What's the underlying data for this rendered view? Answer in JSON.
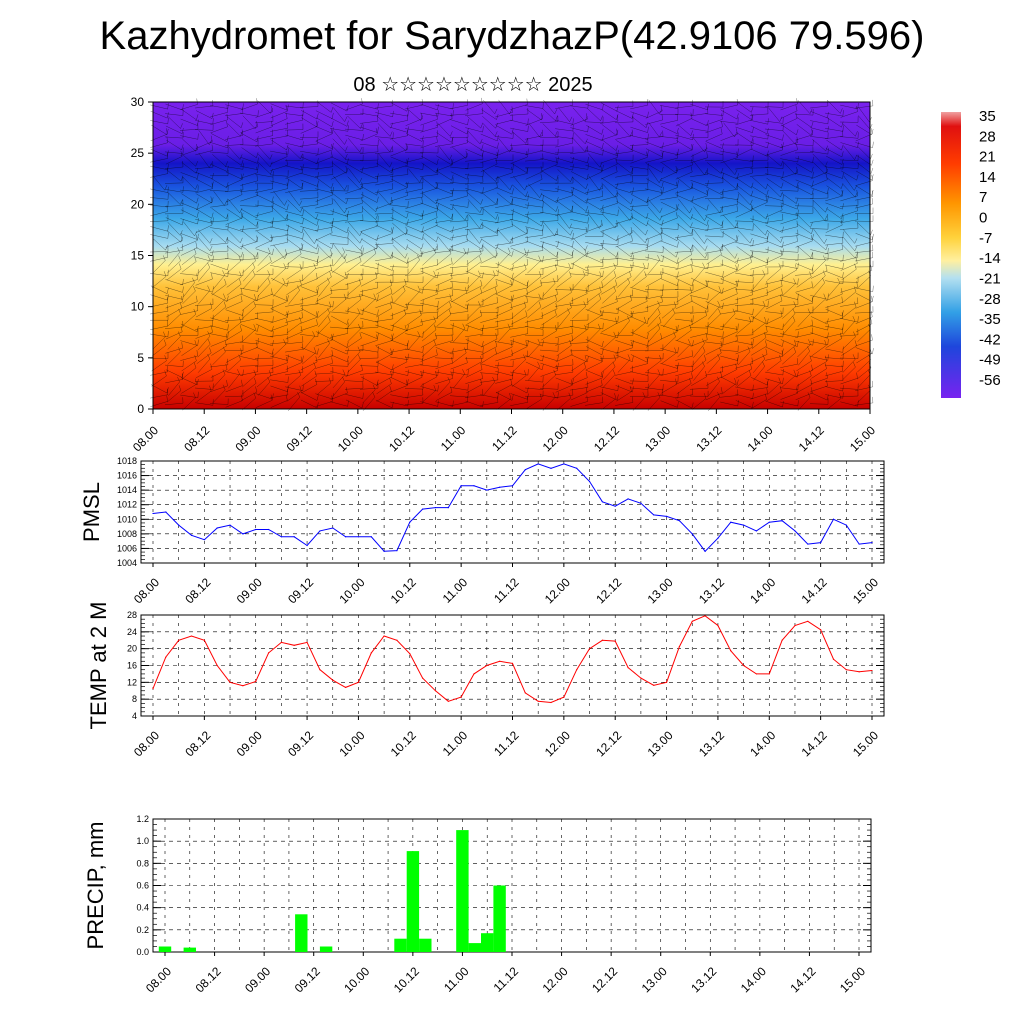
{
  "title": "Kazhydromet for SarydzhazP(42.9106 79.596)",
  "subtitle": "08 ☆☆☆☆☆☆☆☆☆ 2025",
  "time_labels": [
    "08.00",
    "08.12",
    "09.00",
    "09.12",
    "10.00",
    "10.12",
    "11.00",
    "11.12",
    "12.00",
    "12.12",
    "13.00",
    "13.12",
    "14.00",
    "14.12",
    "15.00"
  ],
  "chart_data": [
    {
      "type": "heatmap",
      "title": "",
      "x": [
        "08.00",
        "08.12",
        "09.00",
        "09.12",
        "10.00",
        "10.12",
        "11.00",
        "11.12",
        "12.00",
        "12.12",
        "13.00",
        "13.12",
        "14.00",
        "14.12",
        "15.00"
      ],
      "ylabel": "",
      "ylim": [
        0,
        30
      ],
      "yticks": [
        0,
        5,
        10,
        15,
        20,
        25,
        30
      ],
      "colorbar_labels": [
        "35",
        "28",
        "21",
        "14",
        "7",
        "0",
        "-7",
        "-14",
        "-21",
        "-28",
        "-35",
        "-42",
        "-49",
        "-56"
      ],
      "colorbar_range": [
        -60,
        38
      ],
      "description_of_field": "temperature by height: about 30 near the ground, about 0 near 14, about -35 near 20, below -56 near 25-30",
      "overlay": "wind barbs"
    },
    {
      "type": "line",
      "ylabel": "PMSL",
      "ylim": [
        1004,
        1018
      ],
      "yticks": [
        1004,
        1006,
        1008,
        1010,
        1012,
        1014,
        1016,
        1018
      ],
      "color": "#0000ff",
      "x": [
        "08.00",
        "08.03",
        "08.06",
        "08.09",
        "08.12",
        "08.15",
        "08.18",
        "08.21",
        "09.00",
        "09.03",
        "09.06",
        "09.09",
        "09.12",
        "09.15",
        "09.18",
        "09.21",
        "10.00",
        "10.03",
        "10.06",
        "10.09",
        "10.12",
        "10.15",
        "10.18",
        "10.21",
        "11.00",
        "11.03",
        "11.06",
        "11.09",
        "11.12",
        "11.15",
        "11.18",
        "11.21",
        "12.00",
        "12.03",
        "12.06",
        "12.09",
        "12.12",
        "12.15",
        "12.18",
        "12.21",
        "13.00",
        "13.03",
        "13.06",
        "13.09",
        "13.12",
        "13.15",
        "13.18",
        "13.21",
        "14.00",
        "14.03",
        "14.06",
        "14.09",
        "14.12",
        "14.15",
        "14.18",
        "14.21",
        "15.00"
      ],
      "values": [
        1010.8,
        1011.0,
        1009.2,
        1007.8,
        1007.2,
        1008.8,
        1009.2,
        1008.0,
        1008.6,
        1008.6,
        1007.6,
        1007.6,
        1006.4,
        1008.4,
        1008.8,
        1007.6,
        1007.6,
        1007.6,
        1005.6,
        1005.7,
        1009.6,
        1011.4,
        1011.6,
        1011.6,
        1014.6,
        1014.6,
        1014.0,
        1014.4,
        1014.6,
        1016.8,
        1017.6,
        1017.0,
        1017.6,
        1017.0,
        1015.2,
        1012.4,
        1011.8,
        1012.8,
        1012.2,
        1010.6,
        1010.4,
        1009.8,
        1008.0,
        1005.6,
        1007.4,
        1009.6,
        1009.2,
        1008.4,
        1009.6,
        1009.8,
        1008.4,
        1006.6,
        1006.8,
        1010.0,
        1009.2,
        1006.6,
        1006.8
      ]
    },
    {
      "type": "line",
      "ylabel": "TEMP at 2 M",
      "ylim": [
        4,
        28
      ],
      "yticks": [
        4,
        8,
        12,
        16,
        20,
        24,
        28
      ],
      "color": "#ff0000",
      "x": [
        "08.00",
        "08.03",
        "08.06",
        "08.09",
        "08.12",
        "08.15",
        "08.18",
        "08.21",
        "09.00",
        "09.03",
        "09.06",
        "09.09",
        "09.12",
        "09.15",
        "09.18",
        "09.21",
        "10.00",
        "10.03",
        "10.06",
        "10.09",
        "10.12",
        "10.15",
        "10.18",
        "10.21",
        "11.00",
        "11.03",
        "11.06",
        "11.09",
        "11.12",
        "11.15",
        "11.18",
        "11.21",
        "12.00",
        "12.03",
        "12.06",
        "12.09",
        "12.12",
        "12.15",
        "12.18",
        "12.21",
        "13.00",
        "13.03",
        "13.06",
        "13.09",
        "13.12",
        "13.15",
        "13.18",
        "13.21",
        "14.00",
        "14.03",
        "14.06",
        "14.09",
        "14.12",
        "14.15",
        "14.18",
        "14.21",
        "15.00"
      ],
      "values": [
        10.5,
        18,
        22,
        23,
        22,
        16,
        12,
        11.2,
        12.2,
        19,
        21.5,
        20.8,
        21.5,
        15,
        12.5,
        10.8,
        12,
        19,
        23,
        22,
        18.8,
        13,
        10,
        7.5,
        8.5,
        14,
        16,
        17,
        16.5,
        9.5,
        7.5,
        7.2,
        8.5,
        15,
        20,
        22,
        21.8,
        15.5,
        13,
        11.3,
        12,
        20.5,
        26.5,
        27.8,
        25.5,
        19.5,
        16,
        14,
        14,
        22,
        25.5,
        26.5,
        24.5,
        17.5,
        15,
        14.5,
        14.8
      ]
    },
    {
      "type": "bar",
      "ylabel": "PRECIP, mm",
      "ylim": [
        0,
        1.2
      ],
      "yticks": [
        0.0,
        0.2,
        0.4,
        0.6,
        0.8,
        1.0,
        1.2
      ],
      "color": "#00ff00",
      "x": [
        "08.00",
        "08.03",
        "08.06",
        "08.09",
        "08.12",
        "08.15",
        "08.18",
        "08.21",
        "09.00",
        "09.03",
        "09.06",
        "09.09",
        "09.12",
        "09.15",
        "09.18",
        "09.21",
        "10.00",
        "10.03",
        "10.06",
        "10.09",
        "10.12",
        "10.15",
        "10.18",
        "10.21",
        "11.00",
        "11.03",
        "11.06",
        "11.09",
        "11.12",
        "11.15",
        "11.18",
        "11.21",
        "12.00",
        "12.03",
        "12.06",
        "12.09",
        "12.12",
        "12.15",
        "12.18",
        "12.21",
        "13.00",
        "13.03",
        "13.06",
        "13.09",
        "13.12",
        "13.15",
        "13.18",
        "13.21",
        "14.00",
        "14.03",
        "14.06",
        "14.09",
        "14.12",
        "14.15",
        "14.18",
        "14.21",
        "15.00"
      ],
      "values": [
        0.05,
        0,
        0.04,
        0,
        0,
        0,
        0,
        0,
        0,
        0,
        0,
        0.34,
        0,
        0.05,
        0,
        0,
        0,
        0,
        0,
        0.12,
        0.91,
        0.12,
        0,
        0,
        1.1,
        0.08,
        0.17,
        0.6,
        0,
        0,
        0,
        0,
        0,
        0,
        0,
        0,
        0,
        0,
        0,
        0,
        0,
        0,
        0,
        0,
        0,
        0,
        0,
        0,
        0,
        0,
        0,
        0,
        0,
        0,
        0,
        0,
        0
      ]
    }
  ]
}
